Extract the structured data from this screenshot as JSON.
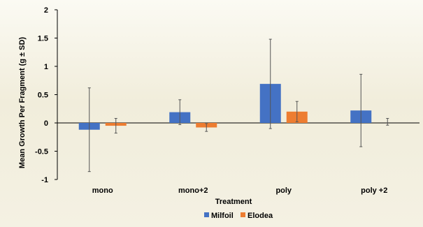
{
  "chart_data": {
    "type": "bar",
    "title": "",
    "xlabel": "Treatment",
    "ylabel": "Mean Growth Per Fragment (g ± SD)",
    "categories": [
      "mono",
      "mono+2",
      "poly",
      "poly +2"
    ],
    "ylim": [
      -1,
      2
    ],
    "yticks": [
      -1,
      -0.5,
      0,
      0.5,
      1,
      1.5,
      2
    ],
    "ytick_labels": [
      "-1",
      "-0.5",
      "0",
      "0.5",
      "1",
      "1.5",
      "2"
    ],
    "grid": false,
    "legend_position": "bottom-center",
    "series": [
      {
        "name": "Milfoil",
        "color": "#4472c4",
        "values": [
          -0.12,
          0.19,
          0.69,
          0.22
        ],
        "sd": [
          0.74,
          0.22,
          0.79,
          0.64
        ]
      },
      {
        "name": "Elodea",
        "color": "#ed7d31",
        "values": [
          -0.05,
          -0.08,
          0.2,
          null
        ],
        "sd": [
          0.13,
          0.07,
          0.18,
          0.06
        ],
        "errbar_center": [
          null,
          null,
          null,
          0.02
        ]
      }
    ]
  },
  "colors": {
    "background": "#f6f3e6",
    "axis": "#000000"
  }
}
